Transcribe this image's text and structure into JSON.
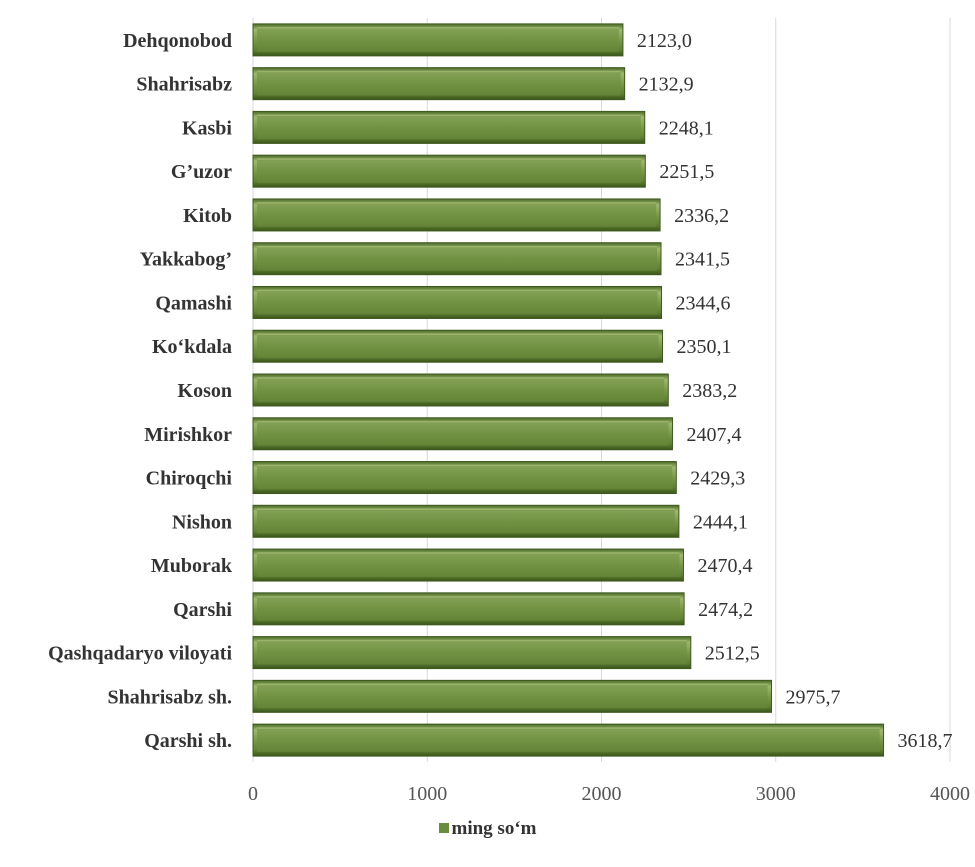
{
  "chart_data": {
    "type": "bar",
    "orientation": "horizontal",
    "categories": [
      "Dehqonobod",
      "Shahrisabz",
      "Kasbi",
      "G’uzor",
      "Kitob",
      "Yakkabog’",
      "Qamashi",
      "Ko‘kdala",
      "Koson",
      "Mirishkor",
      "Chiroqchi",
      "Nishon",
      "Muborak",
      "Qarshi",
      "Qashqadaryo viloyati",
      "Shahrisabz sh.",
      "Qarshi sh."
    ],
    "series": [
      {
        "name": "ming so‘m",
        "values": [
          2123.0,
          2132.9,
          2248.1,
          2251.5,
          2336.2,
          2341.5,
          2344.6,
          2350.1,
          2383.2,
          2407.4,
          2429.3,
          2444.1,
          2470.4,
          2474.2,
          2512.5,
          2975.7,
          3618.7
        ],
        "value_labels": [
          "2123,0",
          "2132,9",
          "2248,1",
          "2251,5",
          "2336,2",
          "2341,5",
          "2344,6",
          "2350,1",
          "2383,2",
          "2407,4",
          "2429,3",
          "2444,1",
          "2470,4",
          "2474,2",
          "2512,5",
          "2975,7",
          "3618,7"
        ],
        "color": "#6b8c3e"
      }
    ],
    "x_ticks": [
      "0",
      "1000",
      "2000",
      "3000",
      "4000"
    ],
    "xlim": [
      0,
      4000
    ],
    "grid": true,
    "legend_position": "bottom-center"
  },
  "colors": {
    "bar": "#6b8c3e",
    "bar_dark": "#3f5a1f",
    "bar_light": "#9bb46c",
    "grid": "#d9d9d9"
  }
}
